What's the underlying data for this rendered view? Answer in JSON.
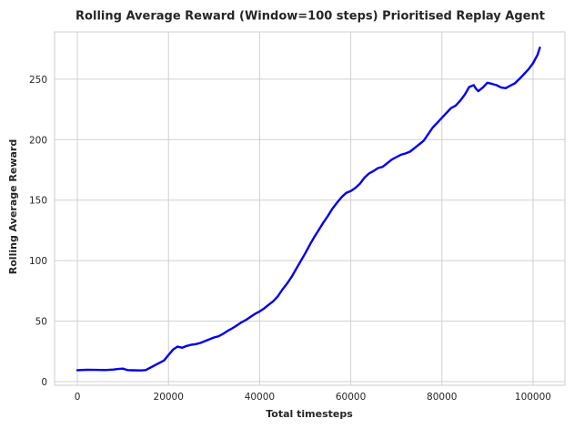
{
  "chart_data": {
    "type": "line",
    "title": "Rolling Average Reward (Window=100 steps) Prioritised Replay Agent",
    "xlabel": "Total timesteps",
    "ylabel": "Rolling Average Reward",
    "xlim": [
      -5000,
      107000
    ],
    "ylim": [
      -3,
      289
    ],
    "xticks": [
      0,
      20000,
      40000,
      60000,
      80000,
      100000
    ],
    "xtick_labels": [
      "0",
      "20000",
      "40000",
      "60000",
      "80000",
      "100000"
    ],
    "yticks": [
      0,
      50,
      100,
      150,
      200,
      250
    ],
    "ytick_labels": [
      "0",
      "50",
      "100",
      "150",
      "200",
      "250"
    ],
    "grid": true,
    "colors": {
      "line": "#0000ee",
      "grid": "#d0d0d0",
      "frame": "#cccccc"
    },
    "series": [
      {
        "x": [
          0,
          2000,
          4000,
          6000,
          8000,
          9000,
          10000,
          10500,
          11000,
          12000,
          14000,
          15000,
          16000,
          17000,
          18000,
          19000,
          20000,
          21000,
          22000,
          23000,
          24000,
          25000,
          26000,
          27000,
          28000,
          29000,
          30000,
          31000,
          32000,
          33000,
          34000,
          35000,
          36000,
          37000,
          38000,
          39000,
          40000,
          41000,
          42000,
          43000,
          44000,
          45000,
          46000,
          47000,
          48000,
          49000,
          50000,
          51000,
          52000,
          53000,
          54000,
          55000,
          56000,
          57000,
          58000,
          59000,
          60000,
          61000,
          62000,
          63000,
          64000,
          65000,
          66000,
          67000,
          68000,
          69000,
          70000,
          71000,
          72000,
          73000,
          74000,
          75000,
          76000,
          77000,
          78000,
          79000,
          80000,
          81000,
          82000,
          83000,
          84000,
          85000,
          86000,
          87000,
          87500,
          88000,
          89000,
          90000,
          91000,
          92000,
          93000,
          94000,
          95000,
          96000,
          97000,
          98000,
          99000,
          100000,
          101000,
          101500
        ],
        "y": [
          9.5,
          9.8,
          9.7,
          9.6,
          10.0,
          10.5,
          10.8,
          10.2,
          9.6,
          9.4,
          9.3,
          9.6,
          11.5,
          13.5,
          15.5,
          17.5,
          22.0,
          26.5,
          29.0,
          28.0,
          29.5,
          30.5,
          31.0,
          32.0,
          33.5,
          35.0,
          36.5,
          37.5,
          39.5,
          42.0,
          44.0,
          46.5,
          49.0,
          51.0,
          53.5,
          56.0,
          58.0,
          60.5,
          63.5,
          66.5,
          70.5,
          76.0,
          81.0,
          86.5,
          93.0,
          99.5,
          106.0,
          113.0,
          119.5,
          125.5,
          131.5,
          137.0,
          143.0,
          148.0,
          152.5,
          156.0,
          157.5,
          160.0,
          163.5,
          168.5,
          172.0,
          174.0,
          176.5,
          177.5,
          180.5,
          183.5,
          185.5,
          187.5,
          188.5,
          190.0,
          193.0,
          196.0,
          199.0,
          204.5,
          210.0,
          214.0,
          218.0,
          222.0,
          226.0,
          228.0,
          232.0,
          237.0,
          243.5,
          245.0,
          242.0,
          240.0,
          243.0,
          247.0,
          246.0,
          245.0,
          243.0,
          242.5,
          244.5,
          246.5,
          250.0,
          254.0,
          258.0,
          263.0,
          270.0,
          276.0
        ]
      }
    ]
  }
}
